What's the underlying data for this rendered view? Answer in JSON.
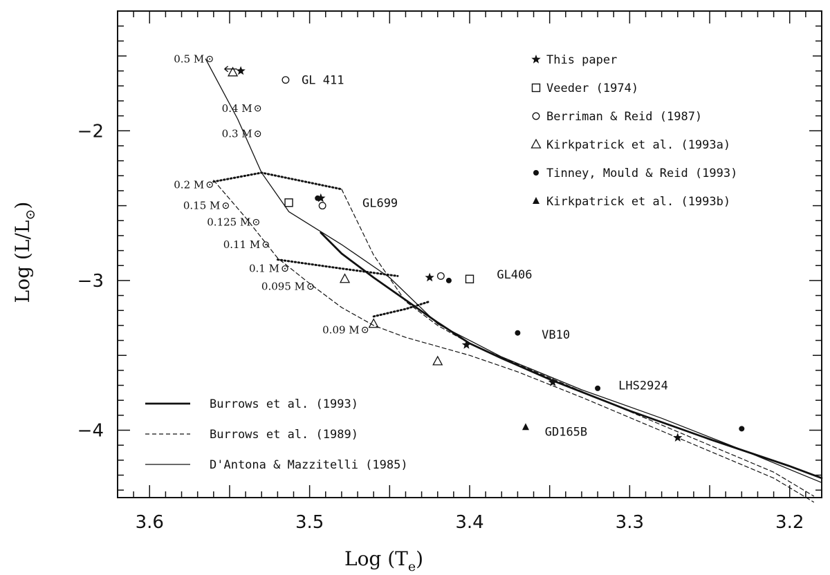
{
  "chart_data": {
    "type": "scatter",
    "x_axis": {
      "label": "Log (T",
      "label_sub": "e",
      "label_close": ")",
      "range": [
        3.62,
        3.18
      ],
      "ticks": [
        3.6,
        3.5,
        3.4,
        3.3,
        3.2
      ],
      "tick_labels": [
        "3.6",
        "3.5",
        "3.4",
        "3.3",
        "3.2"
      ]
    },
    "y_axis": {
      "label": "Log (L/L",
      "label_sub": "⊙",
      "label_close": ")",
      "range": [
        -4.45,
        -1.2
      ],
      "ticks": [
        -2,
        -3,
        -4
      ],
      "tick_labels": [
        "−2",
        "−3",
        "−4"
      ]
    },
    "legend": {
      "placement": "top-right",
      "entries": [
        {
          "marker": "filled-star",
          "label": "This paper"
        },
        {
          "marker": "open-square",
          "label": "Veeder (1974)"
        },
        {
          "marker": "open-circle",
          "label": "Berriman & Reid (1987)"
        },
        {
          "marker": "open-triangle",
          "label": "Kirkpatrick et al. (1993a)"
        },
        {
          "marker": "filled-circle",
          "label": "Tinney, Mould & Reid (1993)"
        },
        {
          "marker": "filled-triangle",
          "label": "Kirkpatrick et al. (1993b)"
        }
      ]
    },
    "line_legend": {
      "placement": "bottom-left",
      "entries": [
        {
          "style": "thick-solid",
          "label": "Burrows et al. (1993)"
        },
        {
          "style": "dashed",
          "label": "Burrows et al. (1989)"
        },
        {
          "style": "thin-solid",
          "label": "D'Antona & Mazzitelli (1985)"
        }
      ]
    },
    "series": [
      {
        "name": "Burrows et al. (1993)",
        "style": "thick-solid",
        "x": [
          3.493,
          3.48,
          3.46,
          3.44,
          3.42,
          3.4,
          3.38,
          3.35,
          3.3,
          3.25,
          3.2,
          3.18
        ],
        "y": [
          -2.68,
          -2.82,
          -2.98,
          -3.13,
          -3.28,
          -3.42,
          -3.52,
          -3.66,
          -3.87,
          -4.06,
          -4.24,
          -4.32
        ]
      },
      {
        "name": "Burrows et al. (1989)",
        "style": "dashed",
        "x": [
          3.56,
          3.54,
          3.52,
          3.5,
          3.48,
          3.46,
          3.44,
          3.42,
          3.4,
          3.37,
          3.33,
          3.29,
          3.25,
          3.21,
          3.185
        ],
        "y": [
          -2.33,
          -2.58,
          -2.85,
          -3.02,
          -3.18,
          -3.3,
          -3.38,
          -3.44,
          -3.5,
          -3.61,
          -3.78,
          -3.96,
          -4.14,
          -4.32,
          -4.48
        ]
      },
      {
        "name": "Burrows et al. (1989) upper",
        "style": "dashed",
        "x": [
          3.48,
          3.46,
          3.44,
          3.42,
          3.4,
          3.37,
          3.33,
          3.29,
          3.25,
          3.21,
          3.185
        ],
        "y": [
          -2.39,
          -2.83,
          -3.14,
          -3.3,
          -3.42,
          -3.56,
          -3.74,
          -3.92,
          -4.1,
          -4.28,
          -4.44
        ]
      },
      {
        "name": "D'Antona & Mazzitelli (1985)",
        "style": "thin-solid",
        "x": [
          3.565,
          3.545,
          3.53,
          3.513,
          3.48,
          3.45,
          3.42,
          3.38,
          3.33,
          3.28,
          3.23,
          3.18
        ],
        "y": [
          -1.52,
          -1.92,
          -2.28,
          -2.54,
          -2.76,
          -2.98,
          -3.29,
          -3.51,
          -3.73,
          -3.92,
          -4.13,
          -4.35
        ]
      },
      {
        "name": "dotted isochrone 1",
        "style": "dotted",
        "x": [
          3.56,
          3.53,
          3.48
        ],
        "y": [
          -2.34,
          -2.28,
          -2.39
        ]
      },
      {
        "name": "dotted isochrone 2",
        "style": "dotted",
        "x": [
          3.52,
          3.48,
          3.445
        ],
        "y": [
          -2.86,
          -2.92,
          -2.97
        ]
      },
      {
        "name": "dotted isochrone 3",
        "style": "dotted",
        "x": [
          3.46,
          3.44,
          3.425
        ],
        "y": [
          -3.24,
          -3.19,
          -3.14
        ]
      }
    ],
    "mass_tracks": [
      {
        "label": "0.5 M",
        "x": 3.565,
        "y": -1.52
      },
      {
        "label": "0.4 M",
        "x": 3.535,
        "y": -1.85
      },
      {
        "label": "0.3 M",
        "x": 3.535,
        "y": -2.02
      },
      {
        "label": "0.2 M",
        "x": 3.565,
        "y": -2.36
      },
      {
        "label": "0.15 M",
        "x": 3.555,
        "y": -2.5
      },
      {
        "label": "0.125 M",
        "x": 3.536,
        "y": -2.61
      },
      {
        "label": "0.11 M",
        "x": 3.53,
        "y": -2.76
      },
      {
        "label": "0.1 M",
        "x": 3.518,
        "y": -2.92
      },
      {
        "label": "0.095 M",
        "x": 3.502,
        "y": -3.04
      },
      {
        "label": "0.09 M",
        "x": 3.468,
        "y": -3.33
      }
    ],
    "points": [
      {
        "marker": "filled-star",
        "x": 3.543,
        "y": -1.6
      },
      {
        "marker": "open-triangle",
        "x": 3.548,
        "y": -1.61,
        "note": "arrow"
      },
      {
        "marker": "open-circle",
        "x": 3.515,
        "y": -1.66
      },
      {
        "marker": "filled-star",
        "x": 3.493,
        "y": -2.45
      },
      {
        "marker": "filled-circle",
        "x": 3.495,
        "y": -2.45
      },
      {
        "marker": "open-circle",
        "x": 3.492,
        "y": -2.5
      },
      {
        "marker": "open-square",
        "x": 3.513,
        "y": -2.48
      },
      {
        "marker": "filled-star",
        "x": 3.425,
        "y": -2.98
      },
      {
        "marker": "open-circle",
        "x": 3.418,
        "y": -2.97
      },
      {
        "marker": "filled-circle",
        "x": 3.413,
        "y": -3.0
      },
      {
        "marker": "open-square",
        "x": 3.4,
        "y": -2.99
      },
      {
        "marker": "open-triangle",
        "x": 3.478,
        "y": -2.99
      },
      {
        "marker": "open-triangle",
        "x": 3.46,
        "y": -3.29
      },
      {
        "marker": "open-triangle",
        "x": 3.42,
        "y": -3.54
      },
      {
        "marker": "filled-circle",
        "x": 3.37,
        "y": -3.35
      },
      {
        "marker": "filled-star",
        "x": 3.402,
        "y": -3.43
      },
      {
        "marker": "filled-star",
        "x": 3.348,
        "y": -3.68
      },
      {
        "marker": "filled-circle",
        "x": 3.32,
        "y": -3.72
      },
      {
        "marker": "filled-star",
        "x": 3.27,
        "y": -4.05
      },
      {
        "marker": "filled-circle",
        "x": 3.23,
        "y": -3.99
      },
      {
        "marker": "filled-triangle",
        "x": 3.365,
        "y": -3.98
      }
    ],
    "star_labels": [
      {
        "text": "GL 411",
        "x": 3.505,
        "y": -1.66
      },
      {
        "text": "GL699",
        "x": 3.467,
        "y": -2.48
      },
      {
        "text": "GL406",
        "x": 3.383,
        "y": -2.96
      },
      {
        "text": "VB10",
        "x": 3.355,
        "y": -3.36
      },
      {
        "text": "LHS2924",
        "x": 3.307,
        "y": -3.7
      },
      {
        "text": "GD165B",
        "x": 3.353,
        "y": -4.01
      }
    ]
  }
}
